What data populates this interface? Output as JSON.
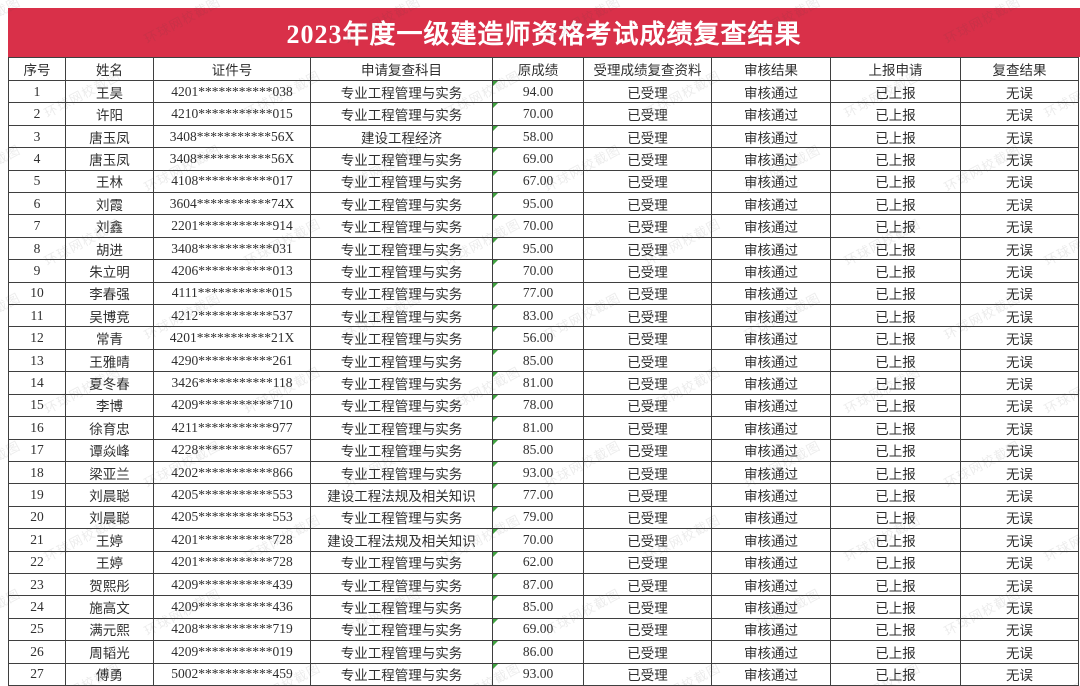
{
  "title": "2023年度一级建造师资格考试成绩复查结果",
  "watermark": "环球网校截图",
  "colors": {
    "banner_red": "#d93049",
    "border": "#3f3f3f",
    "text": "#2f2f2f",
    "score_marker_green": "#3fa23f"
  },
  "table": {
    "headers": [
      "序号",
      "姓名",
      "证件号",
      "申请复查科目",
      "原成绩",
      "受理成绩复查资料",
      "审核结果",
      "上报申请",
      "复查结果"
    ],
    "rows": [
      [
        "1",
        "王昊",
        "4201***********038",
        "专业工程管理与实务",
        "94.00",
        "已受理",
        "审核通过",
        "已上报",
        "无误"
      ],
      [
        "2",
        "许阳",
        "4210***********015",
        "专业工程管理与实务",
        "70.00",
        "已受理",
        "审核通过",
        "已上报",
        "无误"
      ],
      [
        "3",
        "唐玉凤",
        "3408***********56X",
        "建设工程经济",
        "58.00",
        "已受理",
        "审核通过",
        "已上报",
        "无误"
      ],
      [
        "4",
        "唐玉凤",
        "3408***********56X",
        "专业工程管理与实务",
        "69.00",
        "已受理",
        "审核通过",
        "已上报",
        "无误"
      ],
      [
        "5",
        "王林",
        "4108***********017",
        "专业工程管理与实务",
        "67.00",
        "已受理",
        "审核通过",
        "已上报",
        "无误"
      ],
      [
        "6",
        "刘霞",
        "3604***********74X",
        "专业工程管理与实务",
        "95.00",
        "已受理",
        "审核通过",
        "已上报",
        "无误"
      ],
      [
        "7",
        "刘鑫",
        "2201***********914",
        "专业工程管理与实务",
        "70.00",
        "已受理",
        "审核通过",
        "已上报",
        "无误"
      ],
      [
        "8",
        "胡进",
        "3408***********031",
        "专业工程管理与实务",
        "95.00",
        "已受理",
        "审核通过",
        "已上报",
        "无误"
      ],
      [
        "9",
        "朱立明",
        "4206***********013",
        "专业工程管理与实务",
        "70.00",
        "已受理",
        "审核通过",
        "已上报",
        "无误"
      ],
      [
        "10",
        "李春强",
        "4111***********015",
        "专业工程管理与实务",
        "77.00",
        "已受理",
        "审核通过",
        "已上报",
        "无误"
      ],
      [
        "11",
        "吴博竞",
        "4212***********537",
        "专业工程管理与实务",
        "83.00",
        "已受理",
        "审核通过",
        "已上报",
        "无误"
      ],
      [
        "12",
        "常青",
        "4201***********21X",
        "专业工程管理与实务",
        "56.00",
        "已受理",
        "审核通过",
        "已上报",
        "无误"
      ],
      [
        "13",
        "王雅晴",
        "4290***********261",
        "专业工程管理与实务",
        "85.00",
        "已受理",
        "审核通过",
        "已上报",
        "无误"
      ],
      [
        "14",
        "夏冬春",
        "3426***********118",
        "专业工程管理与实务",
        "81.00",
        "已受理",
        "审核通过",
        "已上报",
        "无误"
      ],
      [
        "15",
        "李博",
        "4209***********710",
        "专业工程管理与实务",
        "78.00",
        "已受理",
        "审核通过",
        "已上报",
        "无误"
      ],
      [
        "16",
        "徐育忠",
        "4211***********977",
        "专业工程管理与实务",
        "81.00",
        "已受理",
        "审核通过",
        "已上报",
        "无误"
      ],
      [
        "17",
        "谭焱峰",
        "4228***********657",
        "专业工程管理与实务",
        "85.00",
        "已受理",
        "审核通过",
        "已上报",
        "无误"
      ],
      [
        "18",
        "梁亚兰",
        "4202***********866",
        "专业工程管理与实务",
        "93.00",
        "已受理",
        "审核通过",
        "已上报",
        "无误"
      ],
      [
        "19",
        "刘晨聪",
        "4205***********553",
        "建设工程法规及相关知识",
        "77.00",
        "已受理",
        "审核通过",
        "已上报",
        "无误"
      ],
      [
        "20",
        "刘晨聪",
        "4205***********553",
        "专业工程管理与实务",
        "79.00",
        "已受理",
        "审核通过",
        "已上报",
        "无误"
      ],
      [
        "21",
        "王婷",
        "4201***********728",
        "建设工程法规及相关知识",
        "70.00",
        "已受理",
        "审核通过",
        "已上报",
        "无误"
      ],
      [
        "22",
        "王婷",
        "4201***********728",
        "专业工程管理与实务",
        "62.00",
        "已受理",
        "审核通过",
        "已上报",
        "无误"
      ],
      [
        "23",
        "贺熙彤",
        "4209***********439",
        "专业工程管理与实务",
        "87.00",
        "已受理",
        "审核通过",
        "已上报",
        "无误"
      ],
      [
        "24",
        "施高文",
        "4209***********436",
        "专业工程管理与实务",
        "85.00",
        "已受理",
        "审核通过",
        "已上报",
        "无误"
      ],
      [
        "25",
        "满元熙",
        "4208***********719",
        "专业工程管理与实务",
        "69.00",
        "已受理",
        "审核通过",
        "已上报",
        "无误"
      ],
      [
        "26",
        "周韬光",
        "4209***********019",
        "专业工程管理与实务",
        "86.00",
        "已受理",
        "审核通过",
        "已上报",
        "无误"
      ],
      [
        "27",
        "傅勇",
        "5002***********459",
        "专业工程管理与实务",
        "93.00",
        "已受理",
        "审核通过",
        "已上报",
        "无误"
      ]
    ]
  }
}
